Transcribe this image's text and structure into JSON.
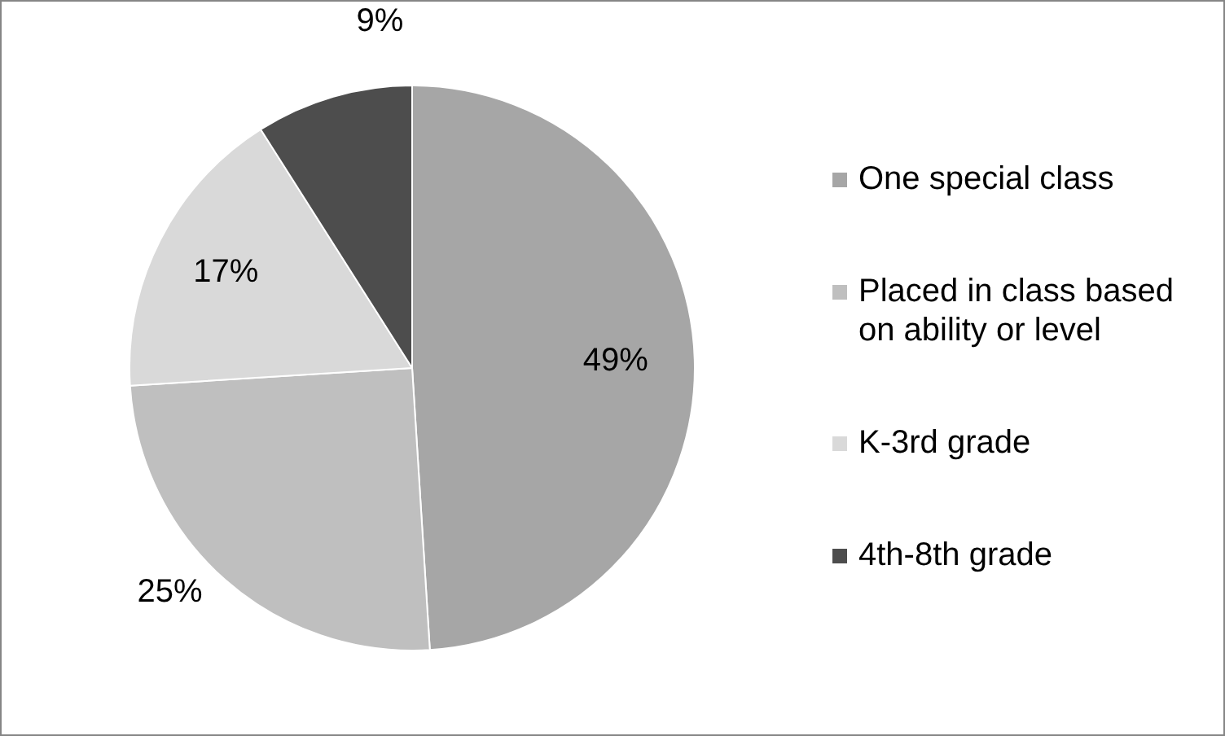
{
  "chart_data": {
    "type": "pie",
    "categories": [
      "One special class",
      "Placed in class based on ability or level",
      "K-3rd grade",
      "4th-8th grade"
    ],
    "values": [
      49,
      25,
      17,
      9
    ],
    "colors": [
      "#a6a6a6",
      "#bfbfbf",
      "#d9d9d9",
      "#4d4d4d"
    ],
    "value_labels": [
      "49%",
      "25%",
      "17%",
      "9%"
    ],
    "legend": "right"
  }
}
